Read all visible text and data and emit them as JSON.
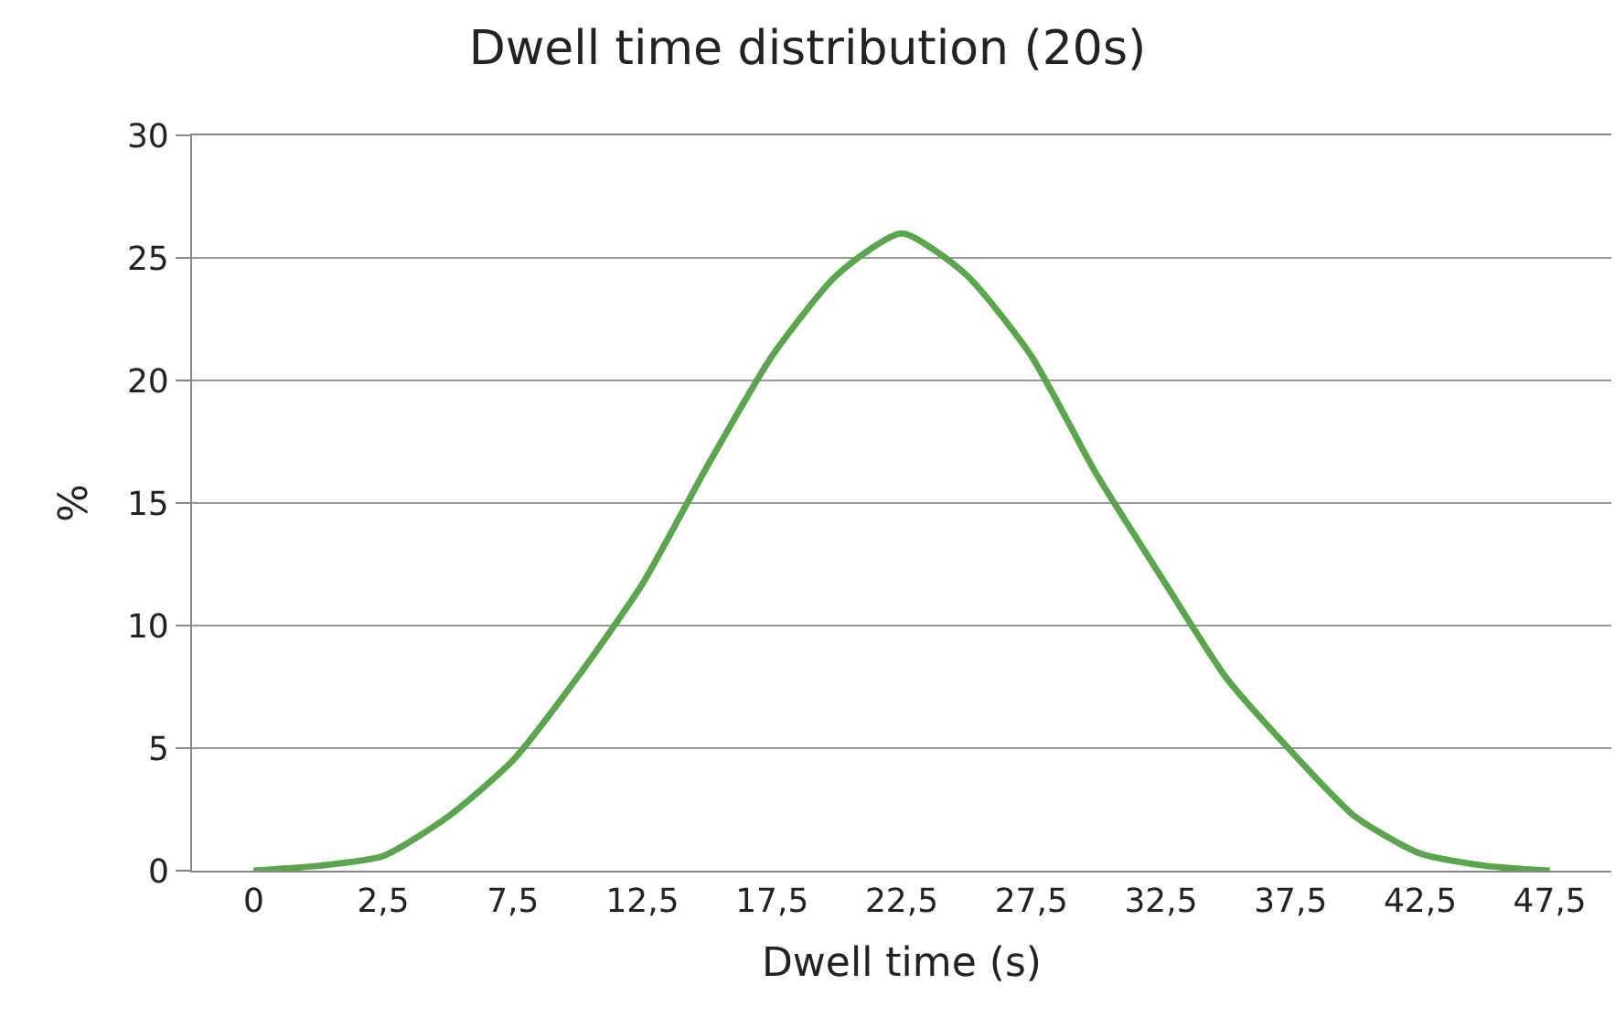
{
  "chart_data": {
    "type": "line",
    "title": "Dwell time distribution (20s)",
    "xlabel": "Dwell time (s)",
    "ylabel": "%",
    "categories": [
      "0",
      null,
      "2,5",
      null,
      "7,5",
      null,
      "12,5",
      null,
      "17,5",
      null,
      "22,5",
      null,
      "27,5",
      null,
      "32,5",
      null,
      "37,5",
      null,
      "42,5",
      null,
      "47,5"
    ],
    "series": [
      {
        "color": "#5ba54f",
        "values": [
          0,
          0.2,
          0.6,
          2.2,
          4.5,
          7.9,
          11.7,
          16.5,
          21,
          24.3,
          26,
          24.3,
          21,
          16.2,
          12,
          7.9,
          4.9,
          2.2,
          0.7,
          0.2,
          0
        ]
      }
    ],
    "ylim": [
      0,
      30
    ],
    "yticks": [
      0,
      5,
      10,
      15,
      20,
      25,
      30
    ],
    "grid": "y",
    "marker": "none",
    "line_style": "solid"
  }
}
